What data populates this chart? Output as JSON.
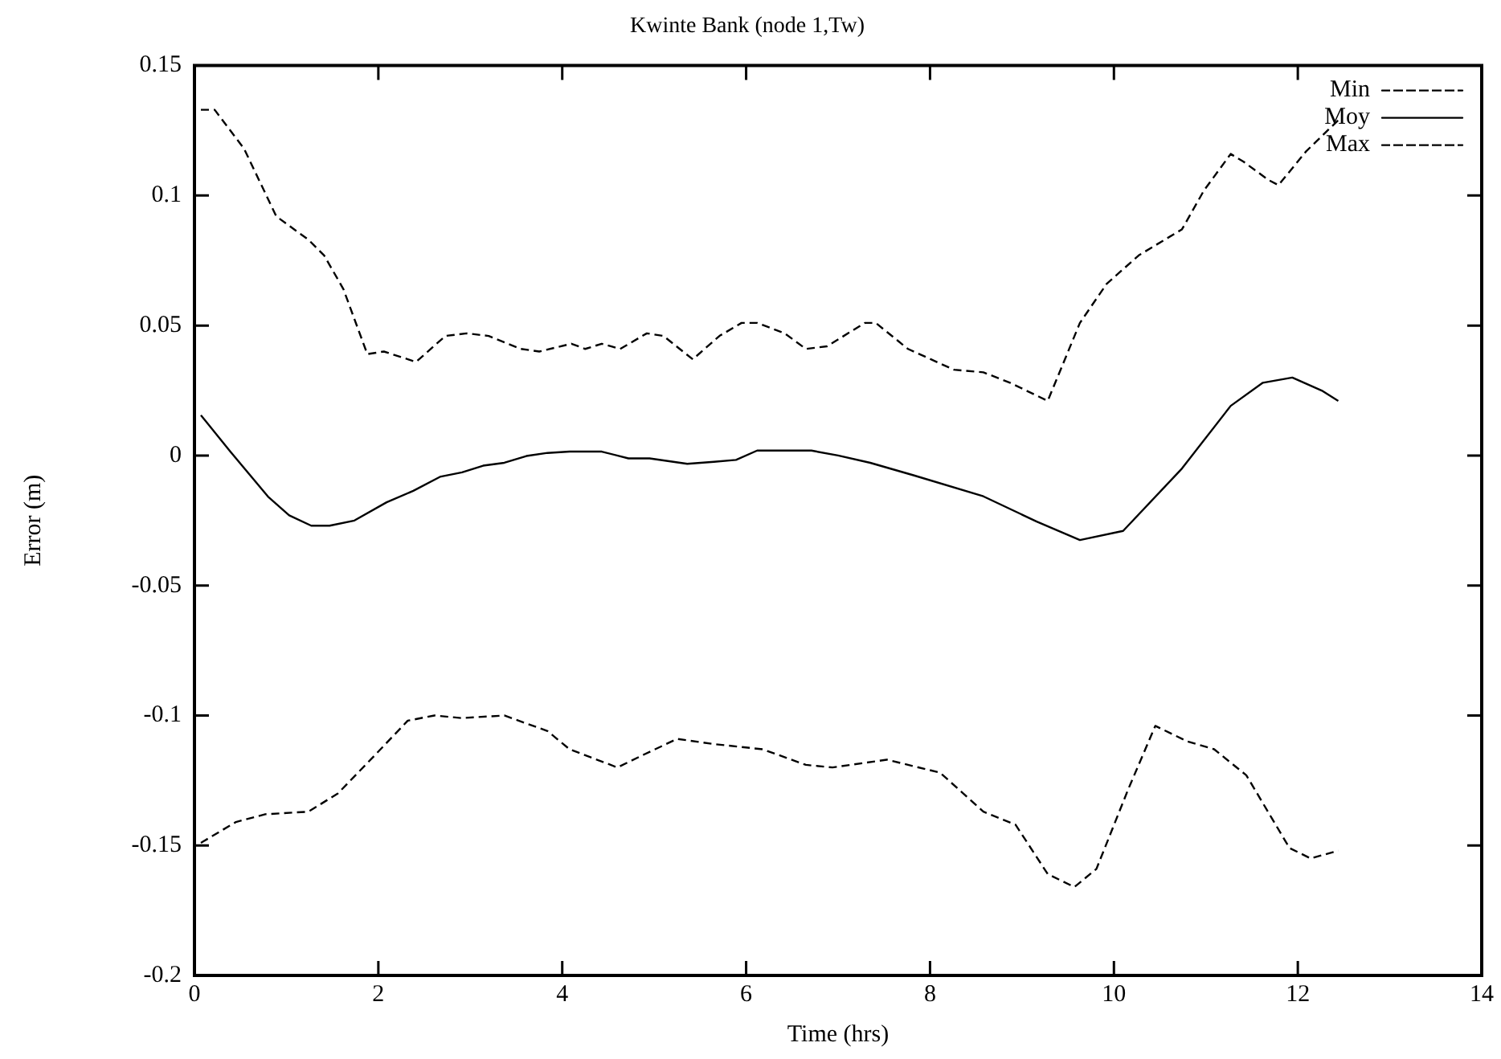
{
  "chart_data": {
    "type": "line",
    "title": "Kwinte Bank (node 1,Tw)",
    "xlabel": "Time (hrs)",
    "ylabel": "Error (m)",
    "xlim": [
      0,
      14
    ],
    "xticks": [
      0,
      2,
      4,
      6,
      8,
      10,
      12,
      14
    ],
    "ylim": [
      -0.2,
      0.15
    ],
    "yticks": [
      -0.2,
      -0.15,
      -0.1,
      -0.05,
      0,
      0.05,
      0.1,
      0.15
    ],
    "grid": false,
    "legend": "top right",
    "marker": "none",
    "series": [
      {
        "name": "Min",
        "color": "#000000",
        "line_style": "dashed",
        "x": [
          0.07,
          0.45,
          0.77,
          1.24,
          1.56,
          1.97,
          2.32,
          2.61,
          2.91,
          3.37,
          3.84,
          4.08,
          4.6,
          4.89,
          5.25,
          5.65,
          6.18,
          6.65,
          6.94,
          7.53,
          8.11,
          8.58,
          8.93,
          9.28,
          9.57,
          9.81,
          10.16,
          10.45,
          10.8,
          11.09,
          11.44,
          11.91,
          12.14,
          12.44
        ],
        "values": [
          -0.149,
          -0.141,
          -0.138,
          -0.137,
          -0.13,
          -0.115,
          -0.102,
          -0.1,
          -0.101,
          -0.1,
          -0.106,
          -0.113,
          -0.12,
          -0.115,
          -0.109,
          -0.111,
          -0.113,
          -0.119,
          -0.12,
          -0.117,
          -0.122,
          -0.137,
          -0.142,
          -0.161,
          -0.166,
          -0.159,
          -0.128,
          -0.104,
          -0.11,
          -0.113,
          -0.123,
          -0.151,
          -0.155,
          -0.152
        ]
      },
      {
        "name": "Moy",
        "color": "#000000",
        "line_style": "solid",
        "x": [
          0.07,
          0.39,
          0.8,
          1.03,
          1.27,
          1.47,
          1.74,
          2.09,
          2.38,
          2.67,
          2.91,
          3.14,
          3.37,
          3.61,
          3.84,
          4.08,
          4.43,
          4.72,
          4.95,
          5.36,
          5.65,
          5.89,
          6.12,
          6.3,
          6.71,
          7.0,
          7.35,
          7.82,
          8.58,
          9.16,
          9.63,
          10.1,
          10.74,
          11.27,
          11.62,
          11.94,
          12.26,
          12.44
        ],
        "values": [
          0.0155,
          0.0015,
          -0.0158,
          -0.023,
          -0.027,
          -0.027,
          -0.025,
          -0.018,
          -0.0136,
          -0.0082,
          -0.0065,
          -0.0039,
          -0.0028,
          -0.0002,
          0.001,
          0.0015,
          0.0015,
          -0.0011,
          -0.0011,
          -0.0032,
          -0.0024,
          -0.0017,
          0.0019,
          0.0019,
          0.0019,
          0,
          -0.0028,
          -0.0076,
          -0.0157,
          -0.0254,
          -0.0325,
          -0.029,
          -0.005,
          0.0191,
          0.028,
          0.03,
          0.025,
          0.021
        ]
      },
      {
        "name": "Max",
        "color": "#000000",
        "line_style": "dashed",
        "x": [
          0.07,
          0.22,
          0.54,
          0.89,
          1.24,
          1.41,
          1.62,
          1.88,
          2.06,
          2.41,
          2.73,
          2.96,
          3.2,
          3.55,
          3.75,
          4.1,
          4.25,
          4.43,
          4.63,
          4.92,
          5.1,
          5.42,
          5.71,
          5.95,
          6.12,
          6.42,
          6.65,
          6.88,
          7.29,
          7.41,
          7.76,
          8.26,
          8.58,
          8.87,
          9.28,
          9.63,
          9.92,
          10.27,
          10.74,
          10.98,
          11.27,
          11.41,
          11.68,
          11.79,
          12.09,
          12.44
        ],
        "values": [
          0.133,
          0.133,
          0.118,
          0.092,
          0.083,
          0.077,
          0.064,
          0.039,
          0.04,
          0.036,
          0.046,
          0.047,
          0.046,
          0.041,
          0.04,
          0.043,
          0.041,
          0.043,
          0.041,
          0.047,
          0.046,
          0.037,
          0.046,
          0.051,
          0.051,
          0.047,
          0.041,
          0.042,
          0.051,
          0.051,
          0.041,
          0.033,
          0.032,
          0.028,
          0.021,
          0.051,
          0.066,
          0.077,
          0.087,
          0.102,
          0.116,
          0.113,
          0.106,
          0.104,
          0.117,
          0.129
        ]
      }
    ]
  }
}
